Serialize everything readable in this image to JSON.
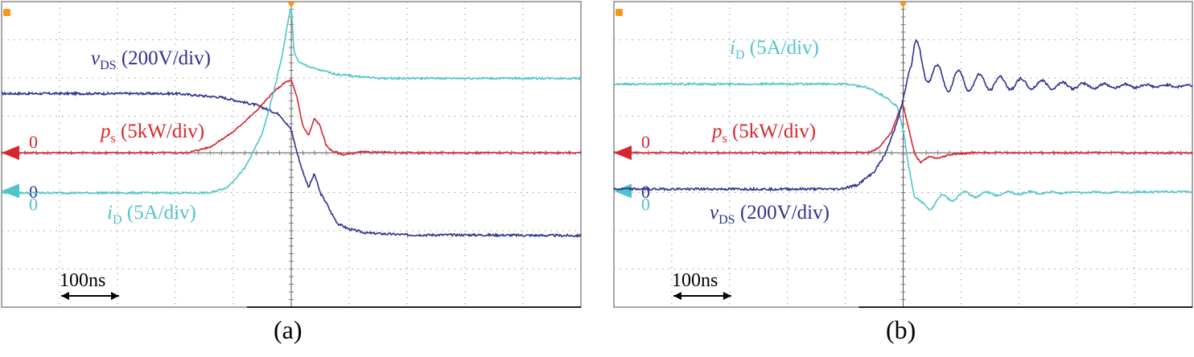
{
  "chart_data": [
    {
      "type": "line",
      "panel_label": "(a)",
      "time_scale_label": "100ns",
      "grid": true,
      "x_divisions": 10,
      "y_divisions": 8,
      "x_unit": "ns",
      "x_range": [
        -500,
        500
      ],
      "series": [
        {
          "name": "vDS (200V/div)",
          "label_main": "v",
          "label_sub": "DS",
          "label_scale": " (200V/div)",
          "color": "#2e3192",
          "zero_label": "0",
          "zero_marker": false,
          "zero_div": -0.5,
          "points": [
            [
              -500,
              1.55
            ],
            [
              -200,
              1.55
            ],
            [
              -120,
              1.45
            ],
            [
              -60,
              1.25
            ],
            [
              -20,
              1.0
            ],
            [
              0,
              0.6
            ],
            [
              10,
              0.0
            ],
            [
              20,
              -0.5
            ],
            [
              30,
              -0.9
            ],
            [
              40,
              -0.55
            ],
            [
              50,
              -1.05
            ],
            [
              60,
              -1.3
            ],
            [
              70,
              -1.6
            ],
            [
              80,
              -1.85
            ],
            [
              100,
              -2.0
            ],
            [
              130,
              -2.1
            ],
            [
              200,
              -2.15
            ],
            [
              300,
              -2.15
            ],
            [
              500,
              -2.17
            ]
          ],
          "noise": 0.03
        },
        {
          "name": "ps (5kW/div)",
          "label_main": "p",
          "label_sub": "s",
          "label_scale": " (5kW/div)",
          "color": "#d7262e",
          "zero_label": "0",
          "zero_marker": true,
          "zero_div": 0,
          "points": [
            [
              -500,
              0
            ],
            [
              -180,
              0
            ],
            [
              -140,
              0.15
            ],
            [
              -100,
              0.55
            ],
            [
              -60,
              1.1
            ],
            [
              -30,
              1.6
            ],
            [
              -10,
              1.85
            ],
            [
              0,
              1.9
            ],
            [
              10,
              1.45
            ],
            [
              20,
              0.7
            ],
            [
              30,
              0.45
            ],
            [
              40,
              0.9
            ],
            [
              50,
              0.7
            ],
            [
              60,
              0.2
            ],
            [
              70,
              0.05
            ],
            [
              90,
              -0.05
            ],
            [
              120,
              0.02
            ],
            [
              200,
              0
            ],
            [
              500,
              0
            ]
          ],
          "noise": 0.02
        },
        {
          "name": "iD (5A/div)",
          "label_main": "i",
          "label_sub": "D",
          "label_scale": " (5A/div)",
          "color": "#4fc4cc",
          "zero_label": "0",
          "zero_marker": true,
          "zero_div": -1,
          "points": [
            [
              -500,
              -1.05
            ],
            [
              -140,
              -1.05
            ],
            [
              -110,
              -0.9
            ],
            [
              -80,
              -0.4
            ],
            [
              -50,
              0.5
            ],
            [
              -30,
              1.6
            ],
            [
              -15,
              2.6
            ],
            [
              -5,
              3.5
            ],
            [
              0,
              3.8
            ],
            [
              5,
              2.6
            ],
            [
              15,
              2.35
            ],
            [
              40,
              2.2
            ],
            [
              80,
              2.05
            ],
            [
              150,
              1.95
            ],
            [
              300,
              1.95
            ],
            [
              500,
              1.95
            ]
          ],
          "noise": 0.025
        }
      ]
    },
    {
      "type": "line",
      "panel_label": "(b)",
      "time_scale_label": "100ns",
      "grid": true,
      "x_divisions": 10,
      "y_divisions": 8,
      "x_unit": "ns",
      "x_range": [
        -500,
        500
      ],
      "series": [
        {
          "name": "iD (5A/div)",
          "label_main": "i",
          "label_sub": "D",
          "label_scale": " (5A/div)",
          "color": "#4fc4cc",
          "zero_label": "0",
          "zero_marker": true,
          "zero_div": -1,
          "points": [
            [
              -500,
              1.8
            ],
            [
              -100,
              1.8
            ],
            [
              -60,
              1.7
            ],
            [
              -30,
              1.45
            ],
            [
              -10,
              1.2
            ],
            [
              0,
              0.6
            ],
            [
              10,
              -0.4
            ],
            [
              20,
              -1.2
            ],
            [
              30,
              -1.45
            ],
            [
              60,
              -1.25
            ],
            [
              100,
              -1.1
            ],
            [
              200,
              -1.05
            ],
            [
              500,
              -1.02
            ]
          ],
          "noise": 0.025,
          "ring": {
            "start": 20,
            "amp": 0.18,
            "period": 38,
            "decay": 110
          }
        },
        {
          "name": "ps (5kW/div)",
          "label_main": "p",
          "label_sub": "s",
          "label_scale": " (5kW/div)",
          "color": "#d7262e",
          "zero_label": "0",
          "zero_marker": true,
          "zero_div": 0,
          "points": [
            [
              -500,
              0
            ],
            [
              -60,
              0
            ],
            [
              -40,
              0.15
            ],
            [
              -20,
              0.55
            ],
            [
              -5,
              1.15
            ],
            [
              0,
              1.25
            ],
            [
              10,
              0.6
            ],
            [
              20,
              -0.05
            ],
            [
              30,
              -0.25
            ],
            [
              45,
              -0.1
            ],
            [
              60,
              -0.15
            ],
            [
              80,
              -0.05
            ],
            [
              120,
              0
            ],
            [
              500,
              0
            ]
          ],
          "noise": 0.02
        },
        {
          "name": "vDS (200V/div)",
          "label_main": "v",
          "label_sub": "DS",
          "label_scale": " (200V/div)",
          "color": "#2e3192",
          "zero_label": "0",
          "zero_marker": false,
          "zero_div": -0.5,
          "points": [
            [
              -500,
              -0.95
            ],
            [
              -110,
              -0.95
            ],
            [
              -80,
              -0.85
            ],
            [
              -50,
              -0.5
            ],
            [
              -30,
              0.0
            ],
            [
              -15,
              0.6
            ],
            [
              -5,
              1.1
            ],
            [
              0,
              1.4
            ],
            [
              10,
              2.1
            ],
            [
              20,
              2.55
            ],
            [
              30,
              2.4
            ],
            [
              60,
              1.95
            ],
            [
              120,
              1.85
            ],
            [
              300,
              1.75
            ],
            [
              500,
              1.75
            ]
          ],
          "noise": 0.03,
          "ring": {
            "start": 15,
            "amp": 0.45,
            "period": 36,
            "decay": 160
          }
        }
      ]
    }
  ]
}
